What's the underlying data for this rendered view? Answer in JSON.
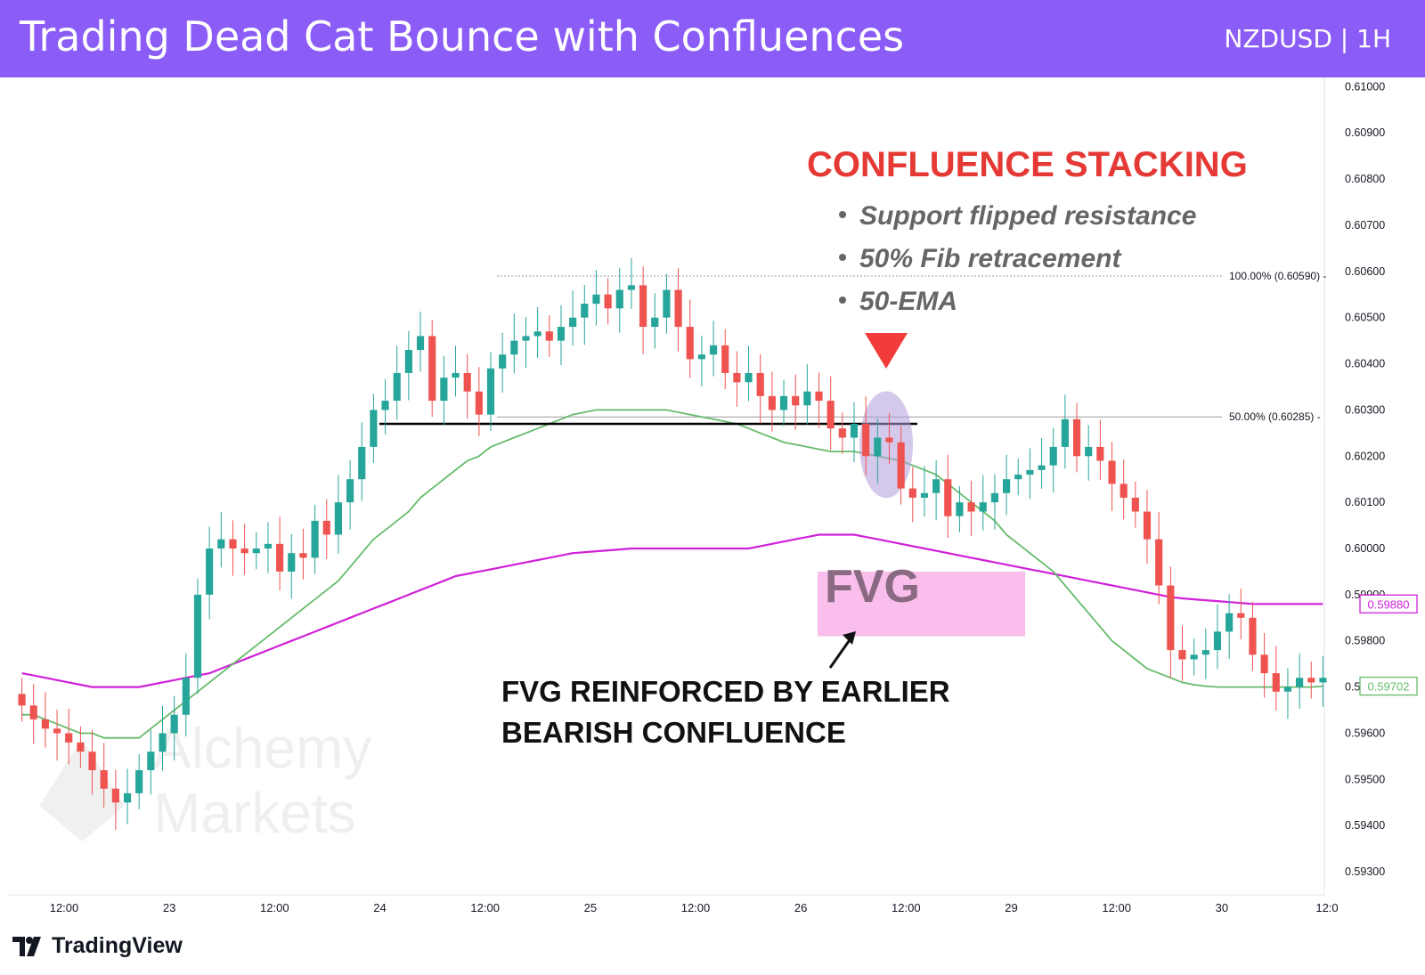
{
  "header": {
    "title": "Trading Dead Cat Bounce with Confluences",
    "symbol": "NZDUSD | 1H"
  },
  "footer": {
    "brand": "TradingView"
  },
  "watermark": {
    "line1": "Alchemy",
    "line2": "Markets"
  },
  "annotations": {
    "confluence_title": "CONFLUENCE STACKING",
    "confluence_items": [
      "Support flipped resistance",
      "50% Fib retracement",
      "50-EMA"
    ],
    "fvg_label": "FVG",
    "fvg_note_line1": "FVG REINFORCED BY EARLIER",
    "fvg_note_line2": "BEARISH CONFLUENCE"
  },
  "colors": {
    "header_bg": "#8b5cf6",
    "bull": "#26a69a",
    "bear": "#ef5350",
    "ema50": "#66bb6a",
    "ema200": "#d020d8",
    "confluence_title": "#e53935",
    "fvg_zone": "#f7a8e4",
    "highlight": "#b39ddb"
  },
  "chart_data": {
    "type": "candlestick",
    "symbol": "NZDUSD",
    "timeframe": "1H",
    "ylim": [
      0.5925,
      0.6102
    ],
    "y_ticks": [
      "0.61000",
      "0.60900",
      "0.60800",
      "0.60700",
      "0.60600",
      "0.60500",
      "0.60400",
      "0.60300",
      "0.60200",
      "0.60100",
      "0.60000",
      "0.59900",
      "0.59800",
      "0.59700",
      "0.59600",
      "0.59500",
      "0.59400",
      "0.59300"
    ],
    "x_ticks": [
      "12:00",
      "23",
      "12:00",
      "24",
      "12:00",
      "25",
      "12:00",
      "26",
      "12:00",
      "29",
      "12:00",
      "30",
      "12:0"
    ],
    "candle_count": 112,
    "closes": [
      0.5966,
      0.5963,
      0.5961,
      0.596,
      0.5958,
      0.5956,
      0.5952,
      0.5948,
      0.5945,
      0.5947,
      0.5952,
      0.5956,
      0.596,
      0.5964,
      0.5972,
      0.599,
      0.6,
      0.6002,
      0.6,
      0.5999,
      0.6,
      0.6001,
      0.5995,
      0.5999,
      0.5998,
      0.6006,
      0.6003,
      0.601,
      0.6015,
      0.6022,
      0.603,
      0.6032,
      0.6038,
      0.6043,
      0.6046,
      0.6032,
      0.6037,
      0.6038,
      0.6034,
      0.6029,
      0.6039,
      0.6042,
      0.6045,
      0.6046,
      0.6047,
      0.6045,
      0.6048,
      0.605,
      0.6053,
      0.6055,
      0.6052,
      0.6056,
      0.6057,
      0.6048,
      0.605,
      0.6056,
      0.6048,
      0.6041,
      0.6042,
      0.6044,
      0.6038,
      0.6036,
      0.6038,
      0.6033,
      0.603,
      0.6033,
      0.6031,
      0.6034,
      0.6032,
      0.6026,
      0.6024,
      0.6027,
      0.602,
      0.6024,
      0.6023,
      0.6013,
      0.6011,
      0.6012,
      0.6015,
      0.6007,
      0.601,
      0.6008,
      0.601,
      0.6012,
      0.6015,
      0.6016,
      0.6017,
      0.6018,
      0.6022,
      0.6028,
      0.602,
      0.6022,
      0.6019,
      0.6014,
      0.6011,
      0.6008,
      0.6002,
      0.5992,
      0.5978,
      0.5976,
      0.5977,
      0.5978,
      0.5982,
      0.5986,
      0.5985,
      0.5977,
      0.5973,
      0.5969,
      0.597,
      0.5972,
      0.5971,
      0.5972
    ],
    "series": [
      {
        "name": "50-EMA",
        "values": [
          0.5964,
          0.5964,
          0.5963,
          0.5962,
          0.5961,
          0.596,
          0.596,
          0.5959,
          0.5959,
          0.5959,
          0.5959,
          0.5961,
          0.5963,
          0.5965,
          0.5967,
          0.5969,
          0.5971,
          0.5973,
          0.5975,
          0.5977,
          0.5979,
          0.5981,
          0.5983,
          0.5985,
          0.5987,
          0.5989,
          0.5991,
          0.5993,
          0.5996,
          0.5999,
          0.6002,
          0.6004,
          0.6006,
          0.6008,
          0.6011,
          0.6013,
          0.6015,
          0.6017,
          0.6019,
          0.602,
          0.6022,
          0.6023,
          0.6024,
          0.6025,
          0.6026,
          0.6027,
          0.6028,
          0.6029,
          0.60295,
          0.603,
          0.603,
          0.603,
          0.603,
          0.603,
          0.603,
          0.603,
          0.60295,
          0.6029,
          0.60285,
          0.6028,
          0.60275,
          0.6027,
          0.6026,
          0.6025,
          0.6024,
          0.6023,
          0.60225,
          0.6022,
          0.60215,
          0.6021,
          0.6021,
          0.6021,
          0.60205,
          0.602,
          0.60195,
          0.6019,
          0.6018,
          0.6017,
          0.6016,
          0.6014,
          0.6012,
          0.601,
          0.6008,
          0.6006,
          0.6003,
          0.6001,
          0.5999,
          0.5997,
          0.5995,
          0.5992,
          0.5989,
          0.5986,
          0.5983,
          0.598,
          0.5978,
          0.5976,
          0.5974,
          0.5973,
          0.5972,
          0.5971,
          0.59705,
          0.59702,
          0.597,
          0.597,
          0.597,
          0.597,
          0.597,
          0.597,
          0.597,
          0.597,
          0.597,
          0.59702
        ]
      },
      {
        "name": "200-EMA",
        "values": [
          0.5973,
          0.59725,
          0.5972,
          0.59715,
          0.5971,
          0.59705,
          0.597,
          0.597,
          0.597,
          0.597,
          0.597,
          0.59705,
          0.5971,
          0.59715,
          0.5972,
          0.59725,
          0.5973,
          0.5974,
          0.5975,
          0.5976,
          0.5977,
          0.5978,
          0.5979,
          0.598,
          0.5981,
          0.5982,
          0.5983,
          0.5984,
          0.5985,
          0.5986,
          0.5987,
          0.5988,
          0.5989,
          0.599,
          0.5991,
          0.5992,
          0.5993,
          0.5994,
          0.59945,
          0.5995,
          0.59955,
          0.5996,
          0.59965,
          0.5997,
          0.59975,
          0.5998,
          0.59985,
          0.5999,
          0.59992,
          0.59994,
          0.59996,
          0.59998,
          0.6,
          0.6,
          0.6,
          0.6,
          0.6,
          0.6,
          0.6,
          0.6,
          0.6,
          0.6,
          0.6,
          0.60005,
          0.6001,
          0.60015,
          0.6002,
          0.60025,
          0.6003,
          0.6003,
          0.6003,
          0.6003,
          0.60025,
          0.6002,
          0.60015,
          0.6001,
          0.60005,
          0.6,
          0.59995,
          0.5999,
          0.59985,
          0.5998,
          0.59975,
          0.5997,
          0.59965,
          0.5996,
          0.59955,
          0.5995,
          0.59945,
          0.5994,
          0.59935,
          0.5993,
          0.59925,
          0.5992,
          0.59915,
          0.5991,
          0.59905,
          0.599,
          0.59895,
          0.59892,
          0.5989,
          0.59888,
          0.59886,
          0.59884,
          0.59882,
          0.5988,
          0.5988,
          0.5988,
          0.5988,
          0.5988,
          0.5988,
          0.5988
        ]
      }
    ],
    "price_labels": [
      {
        "label": "0.59880",
        "color": "#d020d8"
      },
      {
        "label": "0.59702",
        "color": "#66bb6a"
      }
    ],
    "fib_levels": [
      {
        "label": "100.00% (0.60590)",
        "price": 0.6059
      },
      {
        "label": "50.00% (0.60285)",
        "price": 0.60285
      }
    ],
    "support_resistance": 0.6027,
    "fvg": [
      0.5981,
      0.5995
    ]
  }
}
